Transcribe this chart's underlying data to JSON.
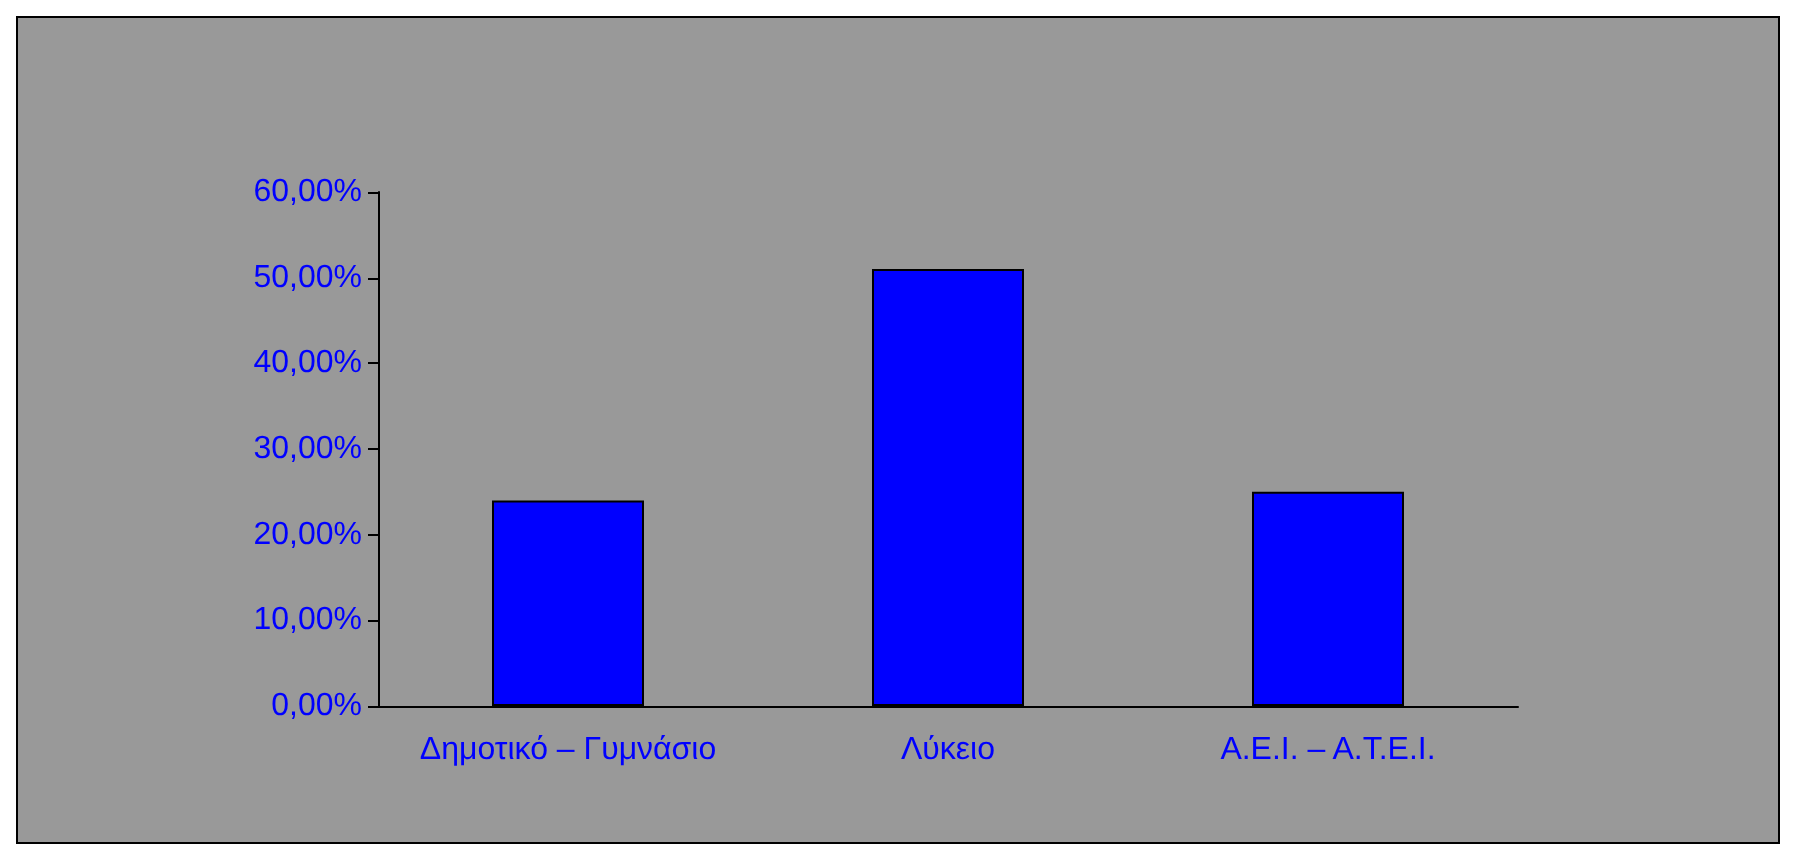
{
  "chart_data": {
    "type": "bar",
    "categories": [
      "Δημοτικό – Γυμνάσιο",
      "Λύκειο",
      "Α.Ε.Ι. – Α.Τ.Ε.Ι."
    ],
    "values": [
      24,
      51,
      25
    ],
    "color": "#0000ff",
    "ylim": [
      0,
      60
    ],
    "yticks": [
      {
        "value": 0,
        "label": "0,00%"
      },
      {
        "value": 10,
        "label": "10,00%"
      },
      {
        "value": 20,
        "label": "20,00%"
      },
      {
        "value": 30,
        "label": "30,00%"
      },
      {
        "value": 40,
        "label": "40,00%"
      },
      {
        "value": 50,
        "label": "50,00%"
      },
      {
        "value": 60,
        "label": "60,00%"
      }
    ],
    "grid": false
  }
}
